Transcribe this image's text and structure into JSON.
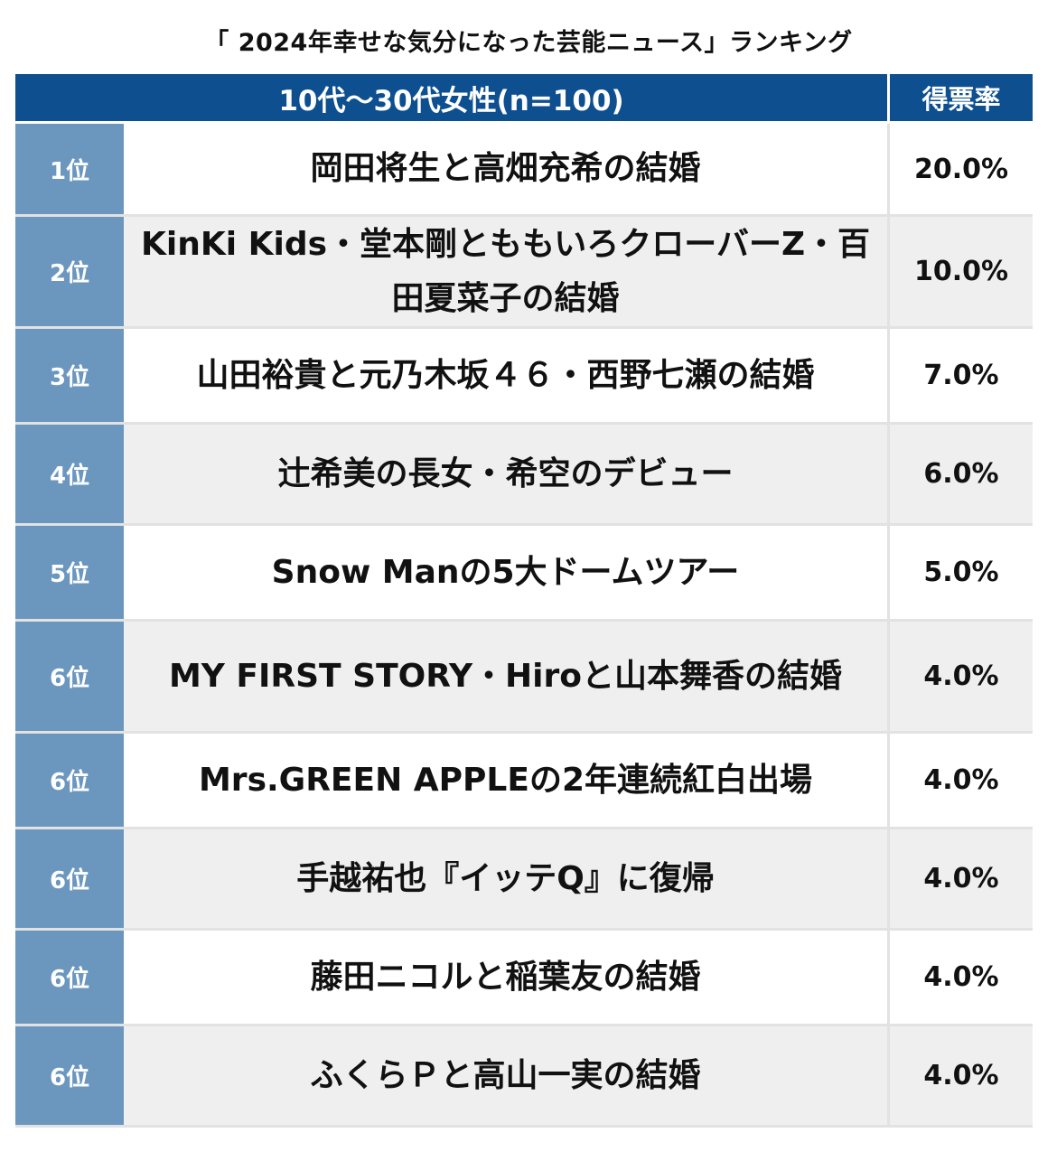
{
  "chart_data": {
    "type": "table",
    "title": "「 2024年幸せな気分になった芸能ニュース」ランキング",
    "header": {
      "segment": "10代〜30代女性(n=100)",
      "rate_label": "得票率"
    },
    "rows": [
      {
        "rank": "1位",
        "topic": "岡田将生と高畑充希の結婚",
        "rate": "20.0%"
      },
      {
        "rank": "2位",
        "topic": "KinKi Kids・堂本剛とももいろクローバーZ・百田夏菜子の結婚",
        "rate": "10.0%"
      },
      {
        "rank": "3位",
        "topic": "山田裕貴と元乃木坂４６・西野七瀬の結婚",
        "rate": "7.0%"
      },
      {
        "rank": "4位",
        "topic": "辻希美の長女・希空のデビュー",
        "rate": "6.0%"
      },
      {
        "rank": "5位",
        "topic": "Snow Manの5大ドームツアー",
        "rate": "5.0%"
      },
      {
        "rank": "6位",
        "topic": "MY FIRST STORY・Hiroと山本舞香の結婚",
        "rate": "4.0%"
      },
      {
        "rank": "6位",
        "topic": "Mrs.GREEN APPLEの2年連続紅白出場",
        "rate": "4.0%"
      },
      {
        "rank": "6位",
        "topic": "手越祐也『イッテQ』に復帰",
        "rate": "4.0%"
      },
      {
        "rank": "6位",
        "topic": "藤田ニコルと稲葉友の結婚",
        "rate": "4.0%"
      },
      {
        "rank": "6位",
        "topic": "ふくらＰと高山一実の結婚",
        "rate": "4.0%"
      }
    ],
    "colors": {
      "header_bg": "#0d4f8f",
      "rank_bg": "#6b97bf",
      "alt_row_bg": "#efefef"
    }
  }
}
